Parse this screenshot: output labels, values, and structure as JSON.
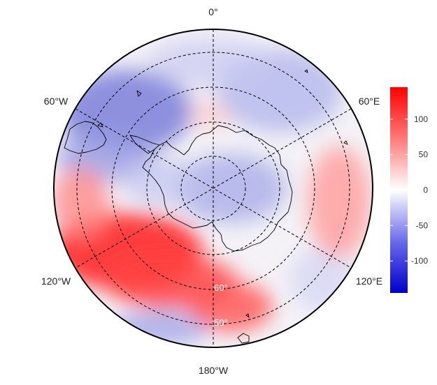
{
  "map": {
    "projection": "south-polar-stereographic",
    "longitude_labels": {
      "top": "0°",
      "upper_left": "60°W",
      "upper_right": "60°E",
      "lower_left": "120°W",
      "lower_right": "120°E",
      "bottom": "180°W"
    },
    "latitude_labels": [
      "60°",
      "50°"
    ],
    "graticule_style": "dashed",
    "coastline_color": "#000000"
  },
  "colorbar": {
    "ticks": [
      "100",
      "50",
      "0",
      "-50",
      "-100"
    ],
    "tick_values": [
      100,
      50,
      0,
      -50,
      -100
    ],
    "range": [
      -145,
      145
    ],
    "colors": {
      "low": "#0000cc",
      "mid": "#ffffff",
      "high": "#ff0000"
    }
  }
}
